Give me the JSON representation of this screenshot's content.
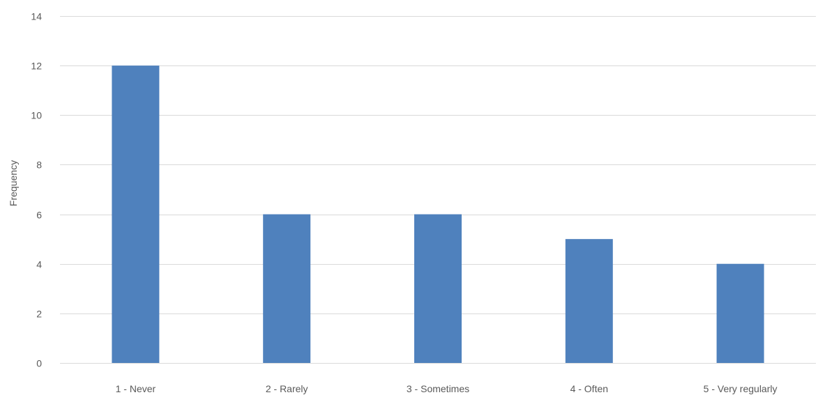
{
  "chart_data": {
    "type": "bar",
    "title": "",
    "xlabel": "",
    "ylabel": "Frequency",
    "categories": [
      "1 - Never",
      "2 - Rarely",
      "3 - Sometimes",
      "4 - Often",
      "5 - Very regularly"
    ],
    "series": [
      {
        "values": [
          12,
          6,
          6,
          5,
          4
        ],
        "color": "#4F81BD"
      }
    ],
    "ylim": [
      0,
      14
    ],
    "yticks": [
      0,
      2,
      4,
      6,
      8,
      10,
      12,
      14
    ],
    "grid": true,
    "legend": "none",
    "colors": {
      "bar": "#4F81BD",
      "grid": "#D9D9D9",
      "text": "#595959"
    }
  }
}
